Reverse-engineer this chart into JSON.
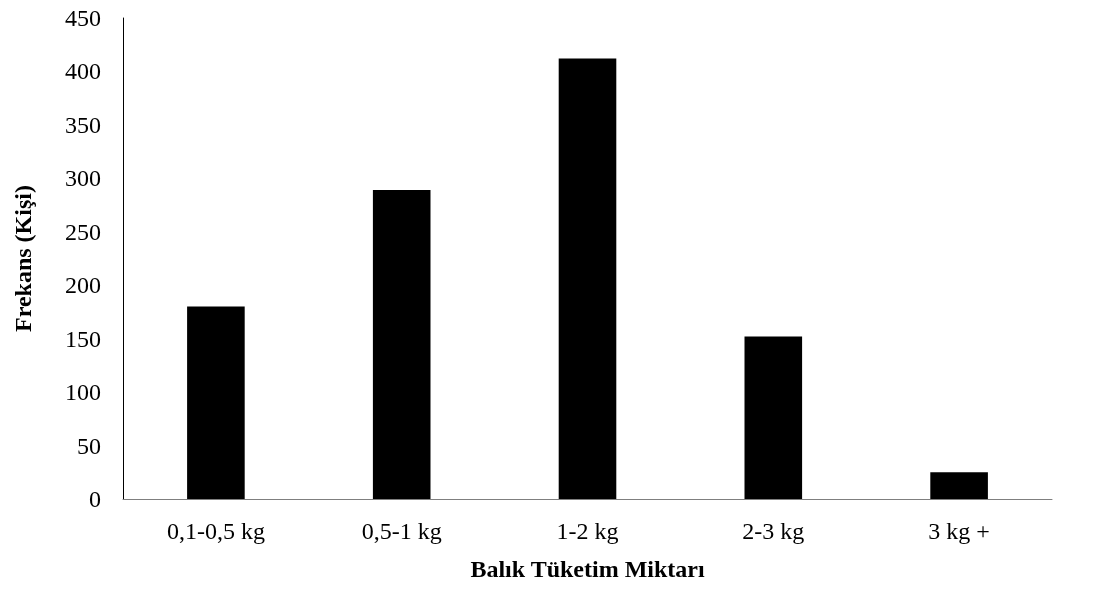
{
  "chart_data": {
    "type": "bar",
    "xlabel": "Balık Tüketim Miktarı",
    "ylabel": "Frekans (Kişi)",
    "categories": [
      "0,1-0,5 kg",
      "0,5-1 kg",
      "1-2 kg",
      "2-3 kg",
      "3 kg +"
    ],
    "values": [
      180,
      289,
      412,
      152,
      25
    ],
    "color": "#000000",
    "ylim": [
      0,
      450
    ],
    "yticks": [
      0,
      50,
      100,
      150,
      200,
      250,
      300,
      350,
      400,
      450
    ],
    "grid": false
  }
}
